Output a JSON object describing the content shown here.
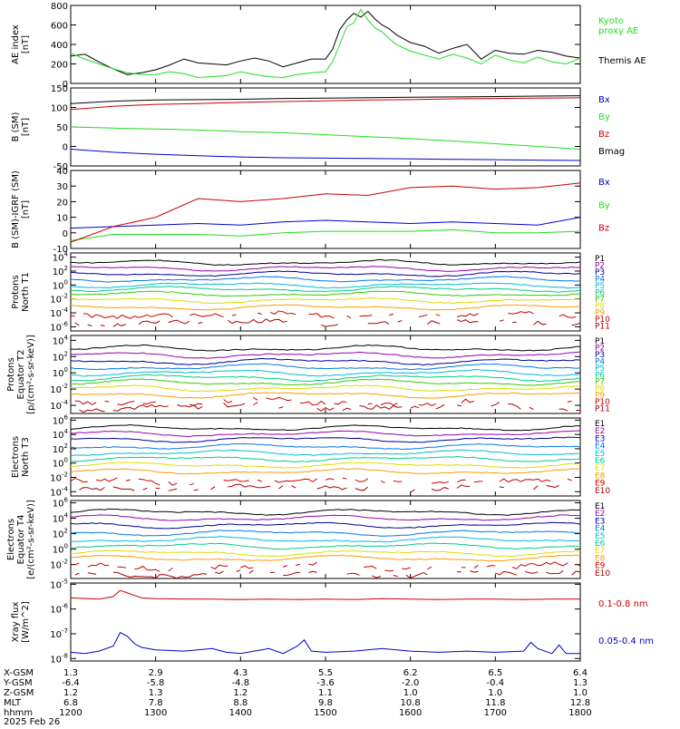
{
  "colors": {
    "black": "#000000",
    "green": "#22dd22",
    "red": "#cc0000",
    "blue": "#0000cc",
    "purple": "#9900aa",
    "navy": "#000099",
    "sky": "#0077ee",
    "cyan": "#00bbdd",
    "teal": "#00cc88",
    "lime": "#33cc00",
    "yellow": "#dddd00",
    "orange": "#ff9900",
    "dorange": "#ee5500",
    "dred": "#aa0000"
  },
  "chart_data": [
    {
      "type": "line",
      "ylabel": [
        "AE index",
        "[nT]"
      ],
      "yticks": [
        {
          "v": 0,
          "label": "0"
        },
        {
          "v": 200,
          "label": "200"
        },
        {
          "v": 400,
          "label": "400"
        },
        {
          "v": 600,
          "label": "600"
        },
        {
          "v": 800,
          "label": "800"
        }
      ],
      "ylim": [
        0,
        800
      ],
      "series": [
        {
          "name": "Themis AE",
          "color": "black",
          "x": [
            1200,
            1210,
            1220,
            1230,
            1240,
            1250,
            1300,
            1310,
            1320,
            1330,
            1340,
            1350,
            1400,
            1410,
            1420,
            1430,
            1440,
            1450,
            1500,
            1505,
            1510,
            1515,
            1520,
            1525,
            1530,
            1535,
            1540,
            1545,
            1550,
            1600,
            1610,
            1620,
            1630,
            1640,
            1650,
            1700,
            1710,
            1720,
            1730,
            1740,
            1750,
            1800
          ],
          "y": [
            280,
            300,
            220,
            150,
            90,
            110,
            140,
            190,
            250,
            210,
            200,
            190,
            230,
            260,
            230,
            170,
            210,
            250,
            250,
            350,
            550,
            650,
            720,
            680,
            740,
            660,
            600,
            560,
            500,
            420,
            380,
            310,
            360,
            400,
            250,
            340,
            310,
            300,
            340,
            320,
            280,
            260
          ]
        },
        {
          "name": "Kyoto proxy AE",
          "color": "green",
          "x": [
            1200,
            1210,
            1220,
            1230,
            1240,
            1250,
            1300,
            1310,
            1320,
            1330,
            1340,
            1350,
            1400,
            1410,
            1420,
            1430,
            1440,
            1450,
            1500,
            1505,
            1510,
            1515,
            1520,
            1525,
            1530,
            1535,
            1540,
            1545,
            1550,
            1600,
            1610,
            1620,
            1630,
            1640,
            1650,
            1700,
            1710,
            1720,
            1730,
            1740,
            1750,
            1800
          ],
          "y": [
            310,
            250,
            200,
            150,
            110,
            90,
            90,
            120,
            100,
            60,
            70,
            80,
            120,
            90,
            70,
            60,
            90,
            110,
            120,
            220,
            400,
            580,
            620,
            760,
            650,
            570,
            530,
            460,
            400,
            330,
            290,
            250,
            300,
            260,
            200,
            290,
            240,
            210,
            270,
            220,
            200,
            260
          ]
        }
      ]
    },
    {
      "type": "line",
      "ylabel": [
        "B (SM)",
        "[nT]"
      ],
      "yticks": [
        {
          "v": -50,
          "label": "-50"
        },
        {
          "v": 0,
          "label": "0"
        },
        {
          "v": 50,
          "label": "50"
        },
        {
          "v": 100,
          "label": "100"
        },
        {
          "v": 150,
          "label": "150"
        }
      ],
      "ylim": [
        -50,
        150
      ],
      "series": [
        {
          "name": "Bx",
          "color": "blue",
          "x": [
            1200,
            1230,
            1300,
            1330,
            1400,
            1430,
            1500,
            1530,
            1600,
            1630,
            1700,
            1730,
            1800
          ],
          "y": [
            -7,
            -15,
            -20,
            -24,
            -27,
            -29,
            -30,
            -31,
            -32,
            -33,
            -34,
            -35,
            -36
          ]
        },
        {
          "name": "By",
          "color": "green",
          "x": [
            1200,
            1230,
            1300,
            1330,
            1400,
            1430,
            1500,
            1530,
            1600,
            1630,
            1700,
            1730,
            1800
          ],
          "y": [
            50,
            47,
            45,
            42,
            38,
            35,
            30,
            25,
            20,
            14,
            7,
            0,
            -7
          ]
        },
        {
          "name": "Bz",
          "color": "red",
          "x": [
            1200,
            1230,
            1300,
            1330,
            1400,
            1430,
            1500,
            1530,
            1600,
            1630,
            1700,
            1730,
            1800
          ],
          "y": [
            95,
            103,
            108,
            110,
            113,
            115,
            117,
            119,
            120,
            122,
            123,
            124,
            125
          ]
        },
        {
          "name": "Bmag",
          "color": "black",
          "x": [
            1200,
            1230,
            1300,
            1330,
            1400,
            1430,
            1500,
            1530,
            1600,
            1630,
            1700,
            1730,
            1800
          ],
          "y": [
            110,
            116,
            119,
            120,
            121,
            123,
            124,
            125,
            126,
            127,
            128,
            129,
            130
          ]
        }
      ]
    },
    {
      "type": "line",
      "ylabel": [
        "B (SM)-IGRF (SM)",
        "[nT]"
      ],
      "yticks": [
        {
          "v": -10,
          "label": "-10"
        },
        {
          "v": 0,
          "label": "0"
        },
        {
          "v": 10,
          "label": "10"
        },
        {
          "v": 20,
          "label": "20"
        },
        {
          "v": 30,
          "label": "30"
        },
        {
          "v": 40,
          "label": "40"
        }
      ],
      "ylim": [
        -10,
        40
      ],
      "series": [
        {
          "name": "Bx",
          "color": "blue",
          "x": [
            1200,
            1230,
            1300,
            1330,
            1400,
            1430,
            1500,
            1530,
            1600,
            1630,
            1700,
            1730,
            1800
          ],
          "y": [
            3,
            4,
            5,
            6,
            5,
            7,
            8,
            7,
            6,
            7,
            6,
            5,
            10
          ]
        },
        {
          "name": "By",
          "color": "green",
          "x": [
            1200,
            1230,
            1300,
            1330,
            1400,
            1430,
            1500,
            1530,
            1600,
            1630,
            1700,
            1730,
            1800
          ],
          "y": [
            -5,
            -1,
            -1,
            -1,
            -2,
            0,
            1,
            1,
            1,
            2,
            0,
            0,
            1
          ]
        },
        {
          "name": "Bz",
          "color": "red",
          "x": [
            1200,
            1230,
            1300,
            1330,
            1400,
            1430,
            1500,
            1530,
            1600,
            1630,
            1700,
            1730,
            1800
          ],
          "y": [
            -6,
            4,
            10,
            22,
            20,
            22,
            25,
            24,
            29,
            30,
            28,
            29,
            32
          ]
        }
      ]
    },
    {
      "type": "line",
      "log": true,
      "ylabel": [
        "Protons",
        "North T1"
      ],
      "yticks": [
        {
          "v": 4,
          "label": "10^4"
        },
        {
          "v": 2,
          "label": "10^2"
        },
        {
          "v": 0,
          "label": "10^0"
        },
        {
          "v": -2,
          "label": "10^-2"
        },
        {
          "v": -4,
          "label": "10^-4"
        },
        {
          "v": -6,
          "label": "10^-6"
        }
      ],
      "ylim": [
        -6.6,
        4.6
      ],
      "legend": [
        "P1",
        "P2",
        "P3",
        "P4",
        "P5",
        "P6",
        "P7",
        "P8",
        "P9",
        "P10",
        "P11"
      ],
      "legend_colors": [
        "black",
        "purple",
        "navy",
        "sky",
        "cyan",
        "teal",
        "lime",
        "yellow",
        "orange",
        "red",
        "dred"
      ],
      "levels": [
        3.2,
        2.4,
        1.6,
        0.8,
        0.0,
        -0.6,
        -1.3,
        -2.2,
        -3.2,
        -4.3,
        -5.4
      ],
      "gappy_from": 9
    },
    {
      "type": "line",
      "log": true,
      "ylabel": [
        "Protons",
        "Equator T2",
        "[p/(cm²-s-sr-keV)]"
      ],
      "yticks": [
        {
          "v": 4,
          "label": "10^4"
        },
        {
          "v": 2,
          "label": "10^2"
        },
        {
          "v": 0,
          "label": "10^0"
        },
        {
          "v": -2,
          "label": "10^-2"
        },
        {
          "v": -4,
          "label": "10^-4"
        }
      ],
      "ylim": [
        -5.0,
        4.6
      ],
      "legend": [
        "P1",
        "P2",
        "P3",
        "P4",
        "P5",
        "P6",
        "P7",
        "P8",
        "P9",
        "P10",
        "P11"
      ],
      "legend_colors": [
        "black",
        "purple",
        "navy",
        "sky",
        "cyan",
        "teal",
        "lime",
        "yellow",
        "orange",
        "red",
        "dred"
      ],
      "levels": [
        3.0,
        2.2,
        1.4,
        0.7,
        0.0,
        -0.6,
        -1.2,
        -1.9,
        -2.7,
        -3.6,
        -4.2
      ],
      "gappy_from": 9
    },
    {
      "type": "line",
      "log": true,
      "ylabel": [
        "Electrons",
        "North T3"
      ],
      "yticks": [
        {
          "v": 6,
          "label": "10^6"
        },
        {
          "v": 4,
          "label": "10^4"
        },
        {
          "v": 2,
          "label": "10^2"
        },
        {
          "v": 0,
          "label": "10^0"
        },
        {
          "v": -2,
          "label": "10^-2"
        },
        {
          "v": -4,
          "label": "10^-4"
        }
      ],
      "ylim": [
        -4.6,
        6.3
      ],
      "legend": [
        "E1",
        "E2",
        "E3",
        "E4",
        "E5",
        "E6",
        "E7",
        "E8",
        "E9",
        "E10"
      ],
      "legend_colors": [
        "black",
        "purple",
        "navy",
        "sky",
        "cyan",
        "teal",
        "yellow",
        "orange",
        "red",
        "dred"
      ],
      "levels": [
        4.9,
        4.1,
        3.3,
        2.3,
        1.4,
        0.6,
        -0.3,
        -1.2,
        -2.5,
        -3.5
      ],
      "gappy_from": 8
    },
    {
      "type": "line",
      "log": true,
      "ylabel": [
        "Electrons",
        "Equator T4",
        "[e/(cm²-s-sr-keV)]"
      ],
      "yticks": [
        {
          "v": 6,
          "label": "10^6"
        },
        {
          "v": 4,
          "label": "10^4"
        },
        {
          "v": 2,
          "label": "10^2"
        },
        {
          "v": 0,
          "label": "10^0"
        },
        {
          "v": -2,
          "label": "10^-2"
        }
      ],
      "ylim": [
        -3.8,
        6.3
      ],
      "legend": [
        "E1",
        "E2",
        "E3",
        "E4",
        "E5",
        "E6",
        "E7",
        "E8",
        "E9",
        "E10"
      ],
      "legend_colors": [
        "black",
        "purple",
        "navy",
        "sky",
        "cyan",
        "teal",
        "yellow",
        "orange",
        "red",
        "dred"
      ],
      "levels": [
        4.8,
        4.0,
        3.1,
        2.1,
        1.2,
        0.4,
        -0.5,
        -1.2,
        -2.3,
        -3.2
      ],
      "gappy_from": 8
    },
    {
      "type": "line",
      "log": true,
      "ylabel": [
        "Xray flux",
        "[W/m^2]"
      ],
      "yticks": [
        {
          "v": -5,
          "label": "10^-5"
        },
        {
          "v": -6,
          "label": "10^-6"
        },
        {
          "v": -7,
          "label": "10^-7"
        },
        {
          "v": -8,
          "label": "10^-8"
        }
      ],
      "ylim": [
        -8.1,
        -4.95
      ],
      "series": [
        {
          "name": "0.1-0.8 nm",
          "color": "red",
          "x": [
            1200,
            1220,
            1230,
            1235,
            1240,
            1245,
            1250,
            1300,
            1320,
            1340,
            1400,
            1420,
            1440,
            1500,
            1520,
            1540,
            1600,
            1620,
            1640,
            1700,
            1720,
            1740,
            1800
          ],
          "y": [
            -5.55,
            -5.6,
            -5.5,
            -5.25,
            -5.35,
            -5.45,
            -5.55,
            -5.58,
            -5.6,
            -5.6,
            -5.62,
            -5.6,
            -5.62,
            -5.6,
            -5.62,
            -5.58,
            -5.6,
            -5.62,
            -5.6,
            -5.6,
            -5.62,
            -5.6,
            -5.6
          ]
        },
        {
          "name": "0.05-0.4 nm",
          "color": "blue",
          "x": [
            1200,
            1210,
            1220,
            1230,
            1235,
            1240,
            1245,
            1250,
            1300,
            1320,
            1340,
            1350,
            1400,
            1420,
            1430,
            1440,
            1445,
            1450,
            1500,
            1520,
            1540,
            1600,
            1620,
            1640,
            1700,
            1720,
            1725,
            1730,
            1740,
            1745,
            1750,
            1800
          ],
          "y": [
            -7.75,
            -7.8,
            -7.7,
            -7.5,
            -6.95,
            -7.1,
            -7.4,
            -7.55,
            -7.65,
            -7.7,
            -7.6,
            -7.75,
            -7.8,
            -7.6,
            -7.8,
            -7.5,
            -7.25,
            -7.7,
            -7.75,
            -7.7,
            -7.6,
            -7.7,
            -7.75,
            -7.7,
            -7.75,
            -7.7,
            -7.35,
            -7.6,
            -7.8,
            -7.45,
            -7.8,
            -7.8
          ]
        }
      ]
    }
  ],
  "xaxis": {
    "ticks": [
      1200,
      1300,
      1400,
      1500,
      1600,
      1700,
      1800
    ],
    "row_labels": [
      "X-GSM",
      "Y-GSM",
      "Z-GSM",
      "MLT",
      "hhmm"
    ],
    "rows": [
      [
        "1.3",
        "2.9",
        "4.3",
        "5.5",
        "6.2",
        "6.5",
        "6.4"
      ],
      [
        "-6.4",
        "-5.8",
        "-4.8",
        "-3.6",
        "-2.0",
        "-0.4",
        "1.3"
      ],
      [
        "1.2",
        "1.3",
        "1.2",
        "1.1",
        "1.0",
        "1.0",
        "1.0"
      ],
      [
        "6.8",
        "7.8",
        "8.8",
        "9.8",
        "10.8",
        "11.8",
        "12.8"
      ],
      [
        "1200",
        "1300",
        "1400",
        "1500",
        "1600",
        "1700",
        "1800"
      ]
    ],
    "date": "2025 Feb 26"
  }
}
